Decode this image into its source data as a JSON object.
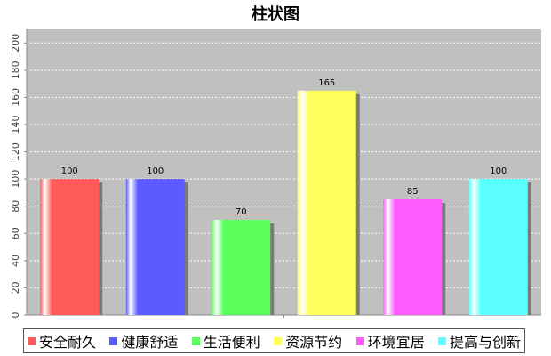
{
  "chart_data": {
    "type": "bar",
    "title": "柱状图",
    "categories": [
      "安全耐久",
      "健康舒适",
      "生活便利",
      "资源节约",
      "环境宜居",
      "提高与创新"
    ],
    "values": [
      100,
      100,
      70,
      165,
      85,
      100
    ],
    "colors": [
      "#ff5b5b",
      "#5b5bff",
      "#5bff5b",
      "#ffff5b",
      "#ff5bff",
      "#5bffff"
    ],
    "ylim": [
      0,
      210
    ],
    "yticks": [
      0,
      20,
      40,
      60,
      80,
      100,
      120,
      140,
      160,
      180,
      200
    ],
    "value_labels": [
      "100",
      "100",
      "70",
      "165",
      "85",
      "100"
    ],
    "xlabel": "",
    "ylabel": "",
    "grid": true,
    "legend_position": "bottom",
    "plot_background": "#c0c0c0"
  }
}
